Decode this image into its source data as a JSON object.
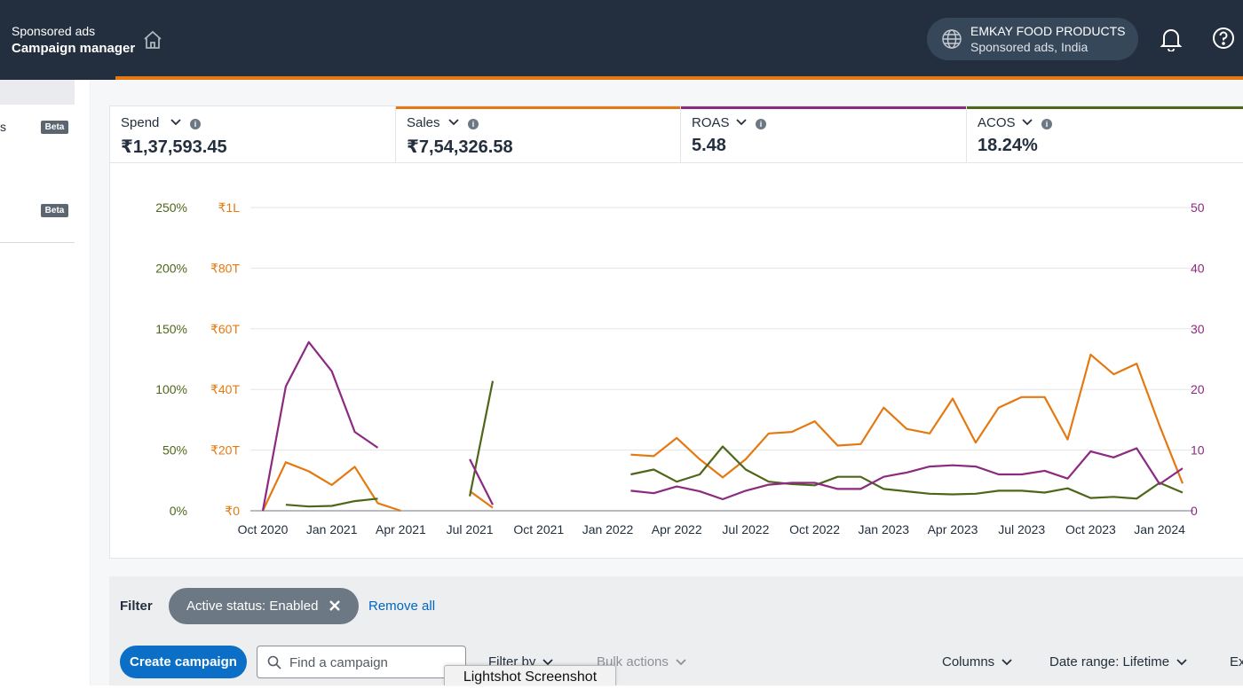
{
  "header": {
    "subtitle": "Sponsored ads",
    "title": "Campaign manager",
    "account_name": "EMKAY FOOD PRODUCTS",
    "account_market": "Sponsored ads, India"
  },
  "sidebar": {
    "item_fragment": "s",
    "badge_1": "Beta",
    "badge_2": "Beta"
  },
  "metrics": [
    {
      "label": "Spend",
      "value": "₹1,37,593.45",
      "color": "#ffffff"
    },
    {
      "label": "Sales",
      "value": "₹7,54,326.58",
      "color": "#e47911"
    },
    {
      "label": "ROAS",
      "value": "5.48",
      "color": "#8c2981"
    },
    {
      "label": "ACOS",
      "value": "18.24%",
      "color": "#4e6619"
    }
  ],
  "chart_data": {
    "type": "line",
    "x": [
      "Oct 2020",
      "Nov 2020",
      "Dec 2020",
      "Jan 2021",
      "Feb 2021",
      "Mar 2021",
      "Apr 2021",
      "May 2021",
      "Jun 2021",
      "Jul 2021",
      "Aug 2021",
      "Sep 2021",
      "Oct 2021",
      "Nov 2021",
      "Dec 2021",
      "Jan 2022",
      "Feb 2022",
      "Mar 2022",
      "Apr 2022",
      "May 2022",
      "Jun 2022",
      "Jul 2022",
      "Aug 2022",
      "Sep 2022",
      "Oct 2022",
      "Nov 2022",
      "Dec 2022",
      "Jan 2023",
      "Feb 2023",
      "Mar 2023",
      "Apr 2023",
      "May 2023",
      "Jun 2023",
      "Jul 2023",
      "Aug 2023",
      "Sep 2023",
      "Oct 2023",
      "Nov 2023",
      "Dec 2023",
      "Jan 2024",
      "Feb 2024"
    ],
    "x_ticks": [
      "Oct 2020",
      "Jan 2021",
      "Apr 2021",
      "Jul 2021",
      "Oct 2021",
      "Jan 2022",
      "Apr 2022",
      "Jul 2022",
      "Oct 2022",
      "Jan 2023",
      "Apr 2023",
      "Jul 2023",
      "Oct 2023",
      "Jan 2024"
    ],
    "y_left_acos_ticks": [
      "0%",
      "50%",
      "100%",
      "150%",
      "200%",
      "250%"
    ],
    "y_left_sales_ticks": [
      "₹0",
      "₹20T",
      "₹40T",
      "₹60T",
      "₹80T",
      "₹1L"
    ],
    "y_right_roas_ticks": [
      "0",
      "10",
      "20",
      "30",
      "40",
      "50"
    ],
    "ylim_sales": [
      0,
      100000
    ],
    "ylim_acos": [
      0,
      250
    ],
    "ylim_roas": [
      0,
      50
    ],
    "grid": true,
    "series": [
      {
        "axis": "sales",
        "color": "#e47911",
        "values": [
          0,
          16000,
          13000,
          8500,
          14500,
          2500,
          0,
          null,
          null,
          6500,
          1000,
          null,
          null,
          null,
          null,
          null,
          18500,
          18000,
          24000,
          17000,
          11000,
          17000,
          25500,
          26000,
          29500,
          21500,
          22000,
          34000,
          27000,
          25500,
          37000,
          22500,
          34000,
          37500,
          37500,
          23500,
          51500,
          45000,
          48500,
          28000,
          9000
        ]
      },
      {
        "axis": "acos",
        "color": "#4e6619",
        "values": [
          null,
          5,
          3.5,
          4,
          8,
          10,
          null,
          null,
          null,
          12,
          107,
          null,
          null,
          null,
          null,
          null,
          30,
          34,
          24,
          30,
          53,
          34,
          24,
          22,
          21,
          28,
          28,
          18,
          16,
          14,
          13.5,
          14,
          16.5,
          16.5,
          15,
          18.5,
          10.5,
          11.5,
          10,
          23,
          15
        ]
      },
      {
        "axis": "roas",
        "color": "#8c2981",
        "values": [
          0,
          20.5,
          27.8,
          23,
          13,
          10.4,
          null,
          null,
          null,
          8.5,
          1,
          null,
          null,
          null,
          null,
          null,
          3.3,
          2.9,
          4,
          3.2,
          1.9,
          3.3,
          4.3,
          4.6,
          4.6,
          3.6,
          3.6,
          5.6,
          6.3,
          7.3,
          7.5,
          7.3,
          6,
          6,
          6.6,
          5.3,
          9.8,
          8.8,
          10.3,
          4.4,
          7
        ]
      }
    ]
  },
  "filter": {
    "label": "Filter",
    "chip_label": "Active status: Enabled",
    "remove_all": "Remove all"
  },
  "toolbar": {
    "create_campaign": "Create campaign",
    "search_placeholder": "Find a campaign",
    "filter_by": "Filter by",
    "bulk_actions": "Bulk actions",
    "columns": "Columns",
    "date_range": "Date range: Lifetime",
    "export_fragment": "Ex"
  },
  "overlay": {
    "tooltip": "Lightshot Screenshot"
  }
}
